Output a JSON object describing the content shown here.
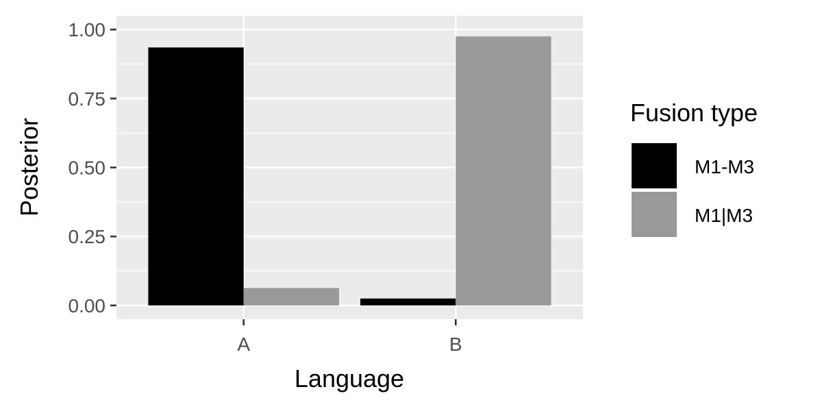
{
  "chart_data": {
    "type": "bar",
    "categories": [
      "A",
      "B"
    ],
    "series": [
      {
        "name": "M1-M3",
        "values": [
          0.935,
          0.025
        ]
      },
      {
        "name": "M1|M3",
        "values": [
          0.063,
          0.975
        ]
      }
    ],
    "xlabel": "Language",
    "ylabel": "Posterior",
    "ylim": [
      -0.05,
      1.05
    ],
    "yticks": [
      0.0,
      0.25,
      0.5,
      0.75,
      1.0
    ],
    "ytick_labels": [
      "0.00",
      "0.25",
      "0.50",
      "0.75",
      "1.00"
    ],
    "grid": true,
    "legend": {
      "title": "Fusion type",
      "position": "right"
    }
  },
  "colors": {
    "panel_bg": "#ebebeb",
    "grid": "#ffffff",
    "tick": "#333333",
    "series": [
      "#000000",
      "#999999"
    ]
  }
}
